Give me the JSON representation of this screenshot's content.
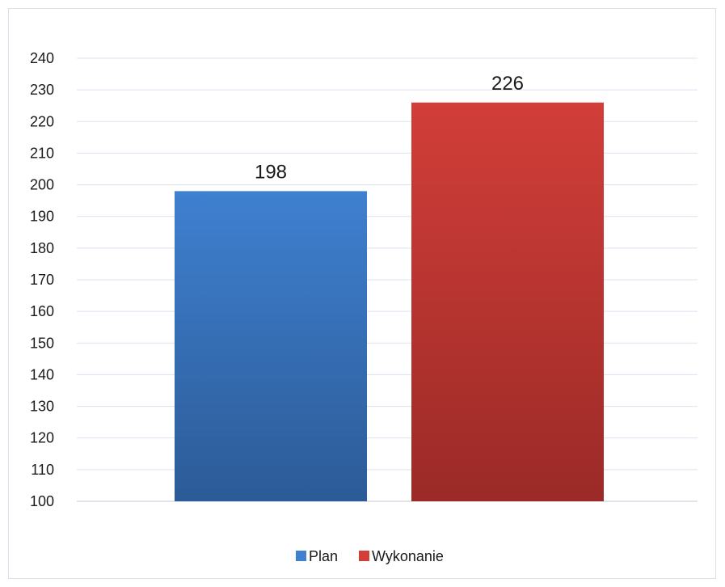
{
  "chart_data": {
    "type": "bar",
    "title": "",
    "xlabel": "",
    "ylabel": "",
    "categories": [
      "Plan",
      "Wykonanie"
    ],
    "values": [
      198,
      226
    ],
    "ylim": [
      100,
      240
    ],
    "ytick_step": 10,
    "grid": true,
    "legend_position": "bottom",
    "colors": {
      "Plan": {
        "top": "#3f80d0",
        "bottom": "#2c5b97"
      },
      "Wykonanie": {
        "top": "#d23e39",
        "bottom": "#9b2a27"
      },
      "gridline": "#d9e3ef",
      "axis": "#bfc9d4"
    }
  }
}
